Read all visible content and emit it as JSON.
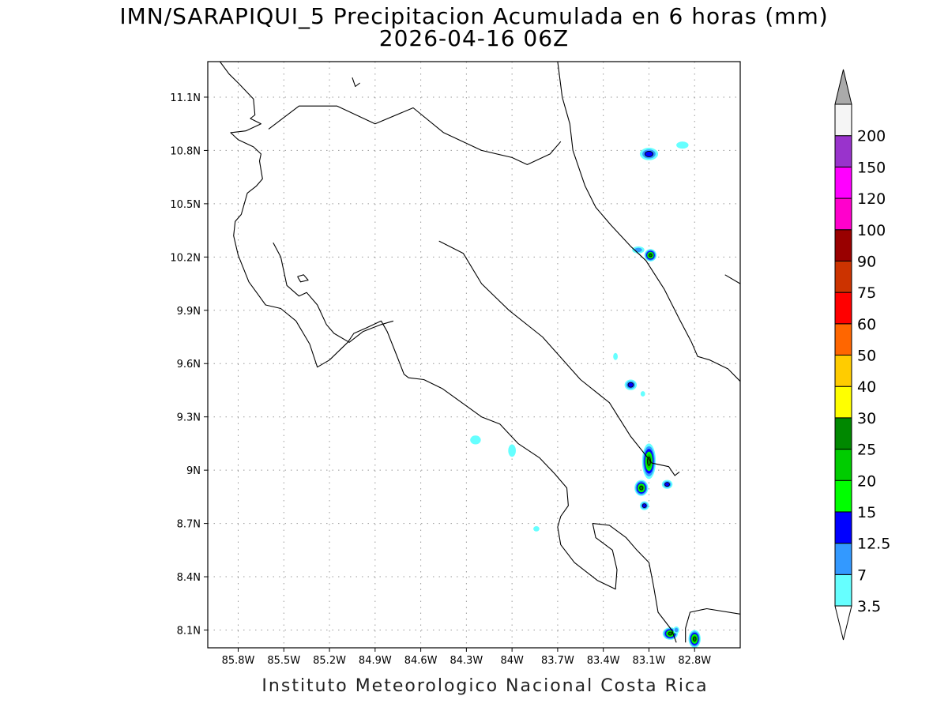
{
  "title": "IMN/SARAPIQUI_5 Precipitacion Acumulada en 6 horas (mm)",
  "subtitle": "2026-04-16 06Z",
  "footer": "Instituto Meteorologico Nacional Costa Rica",
  "map": {
    "lon_range": [
      -86.0,
      -82.5
    ],
    "lat_range": [
      8.0,
      11.3
    ],
    "x_ticks": [
      {
        "lon": -85.8,
        "label": "85.8W"
      },
      {
        "lon": -85.5,
        "label": "85.5W"
      },
      {
        "lon": -85.2,
        "label": "85.2W"
      },
      {
        "lon": -84.9,
        "label": "84.9W"
      },
      {
        "lon": -84.6,
        "label": "84.6W"
      },
      {
        "lon": -84.3,
        "label": "84.3W"
      },
      {
        "lon": -84.0,
        "label": "84W"
      },
      {
        "lon": -83.7,
        "label": "83.7W"
      },
      {
        "lon": -83.4,
        "label": "83.4W"
      },
      {
        "lon": -83.1,
        "label": "83.1W"
      },
      {
        "lon": -82.8,
        "label": "82.8W"
      }
    ],
    "y_ticks": [
      {
        "lat": 11.1,
        "label": "11.1N"
      },
      {
        "lat": 10.8,
        "label": "10.8N"
      },
      {
        "lat": 10.5,
        "label": "10.5N"
      },
      {
        "lat": 10.2,
        "label": "10.2N"
      },
      {
        "lat": 9.9,
        "label": "9.9N"
      },
      {
        "lat": 9.6,
        "label": "9.6N"
      },
      {
        "lat": 9.3,
        "label": "9.3N"
      },
      {
        "lat": 9.0,
        "label": "9N"
      },
      {
        "lat": 8.7,
        "label": "8.7N"
      },
      {
        "lat": 8.4,
        "label": "8.4N"
      },
      {
        "lat": 8.1,
        "label": "8.1N"
      }
    ],
    "grid": true,
    "coast_lines": [
      [
        [
          -85.92,
          11.3
        ],
        [
          -85.86,
          11.23
        ],
        [
          -85.8,
          11.18
        ],
        [
          -85.7,
          11.09
        ],
        [
          -85.69,
          11.0
        ],
        [
          -85.72,
          10.98
        ],
        [
          -85.65,
          10.95
        ],
        [
          -85.75,
          10.91
        ],
        [
          -85.85,
          10.9
        ],
        [
          -85.8,
          10.86
        ],
        [
          -85.7,
          10.82
        ],
        [
          -85.65,
          10.78
        ],
        [
          -85.66,
          10.74
        ],
        [
          -85.64,
          10.64
        ],
        [
          -85.68,
          10.6
        ],
        [
          -85.74,
          10.56
        ],
        [
          -85.78,
          10.44
        ],
        [
          -85.82,
          10.4
        ],
        [
          -85.83,
          10.32
        ],
        [
          -85.8,
          10.21
        ],
        [
          -85.73,
          10.06
        ],
        [
          -85.67,
          9.99
        ],
        [
          -85.62,
          9.93
        ],
        [
          -85.52,
          9.91
        ],
        [
          -85.42,
          9.84
        ],
        [
          -85.33,
          9.71
        ],
        [
          -85.28,
          9.58
        ],
        [
          -85.2,
          9.62
        ],
        [
          -85.08,
          9.72
        ],
        [
          -85.04,
          9.77
        ],
        [
          -84.96,
          9.8
        ],
        [
          -84.86,
          9.84
        ],
        [
          -84.82,
          9.78
        ],
        [
          -84.76,
          9.65
        ],
        [
          -84.71,
          9.54
        ],
        [
          -84.68,
          9.52
        ],
        [
          -84.58,
          9.51
        ],
        [
          -84.46,
          9.46
        ],
        [
          -84.33,
          9.38
        ],
        [
          -84.2,
          9.3
        ],
        [
          -84.08,
          9.26
        ],
        [
          -83.96,
          9.15
        ],
        [
          -83.82,
          9.07
        ],
        [
          -83.72,
          8.98
        ],
        [
          -83.64,
          8.9
        ],
        [
          -83.63,
          8.8
        ],
        [
          -83.68,
          8.74
        ],
        [
          -83.7,
          8.68
        ],
        [
          -83.68,
          8.58
        ],
        [
          -83.59,
          8.48
        ],
        [
          -83.5,
          8.42
        ],
        [
          -83.44,
          8.38
        ],
        [
          -83.32,
          8.33
        ],
        [
          -83.31,
          8.44
        ],
        [
          -83.34,
          8.55
        ],
        [
          -83.45,
          8.62
        ],
        [
          -83.47,
          8.7
        ],
        [
          -83.36,
          8.69
        ],
        [
          -83.25,
          8.62
        ],
        [
          -83.18,
          8.55
        ],
        [
          -83.1,
          8.48
        ],
        [
          -83.07,
          8.35
        ],
        [
          -83.04,
          8.2
        ],
        [
          -82.95,
          8.1
        ],
        [
          -82.92,
          8.03
        ]
      ],
      [
        [
          -82.86,
          8.03
        ],
        [
          -82.86,
          8.11
        ],
        [
          -82.83,
          8.2
        ],
        [
          -82.72,
          8.22
        ],
        [
          -82.5,
          8.19
        ]
      ],
      [
        [
          -84.48,
          10.29
        ],
        [
          -84.32,
          10.22
        ],
        [
          -84.2,
          10.05
        ],
        [
          -84.02,
          9.9
        ],
        [
          -83.8,
          9.75
        ],
        [
          -83.55,
          9.51
        ],
        [
          -83.36,
          9.38
        ],
        [
          -83.22,
          9.19
        ],
        [
          -83.08,
          9.04
        ],
        [
          -82.97,
          9.02
        ],
        [
          -82.93,
          8.97
        ],
        [
          -82.9,
          8.99
        ]
      ],
      [
        [
          -85.57,
          10.28
        ],
        [
          -85.52,
          10.2
        ],
        [
          -85.48,
          10.04
        ],
        [
          -85.4,
          9.98
        ],
        [
          -85.35,
          10.0
        ],
        [
          -85.28,
          9.93
        ],
        [
          -85.22,
          9.82
        ],
        [
          -85.17,
          9.77
        ],
        [
          -85.07,
          9.72
        ],
        [
          -84.98,
          9.78
        ],
        [
          -84.86,
          9.82
        ],
        [
          -84.78,
          9.84
        ]
      ],
      [
        [
          -85.41,
          10.09
        ],
        [
          -85.37,
          10.1
        ],
        [
          -85.34,
          10.07
        ],
        [
          -85.39,
          10.06
        ],
        [
          -85.41,
          10.09
        ]
      ],
      [
        [
          -85.05,
          11.21
        ],
        [
          -85.03,
          11.16
        ],
        [
          -85.0,
          11.18
        ]
      ],
      [
        [
          -85.6,
          10.92
        ],
        [
          -85.4,
          11.05
        ],
        [
          -85.15,
          11.05
        ],
        [
          -84.9,
          10.95
        ],
        [
          -84.65,
          11.04
        ],
        [
          -84.45,
          10.9
        ],
        [
          -84.2,
          10.8
        ],
        [
          -84.0,
          10.76
        ],
        [
          -83.9,
          10.72
        ],
        [
          -83.75,
          10.78
        ],
        [
          -83.68,
          10.85
        ]
      ],
      [
        [
          -83.7,
          11.3
        ],
        [
          -83.67,
          11.1
        ],
        [
          -83.62,
          10.95
        ],
        [
          -83.6,
          10.8
        ],
        [
          -83.52,
          10.6
        ],
        [
          -83.45,
          10.48
        ],
        [
          -83.35,
          10.38
        ],
        [
          -83.22,
          10.26
        ],
        [
          -83.12,
          10.18
        ],
        [
          -83.0,
          10.02
        ],
        [
          -82.9,
          9.85
        ],
        [
          -82.82,
          9.72
        ],
        [
          -82.78,
          9.64
        ],
        [
          -82.7,
          9.62
        ],
        [
          -82.58,
          9.57
        ],
        [
          -82.5,
          9.5
        ]
      ],
      [
        [
          -82.5,
          10.05
        ],
        [
          -82.6,
          10.1
        ]
      ]
    ],
    "rain_cells": [
      {
        "lon": -83.1,
        "lat": 10.78,
        "rx": 0.06,
        "ry": 0.035,
        "level": 12.5
      },
      {
        "lon": -82.88,
        "lat": 10.83,
        "rx": 0.04,
        "ry": 0.02,
        "level": 3.5
      },
      {
        "lon": -83.09,
        "lat": 10.21,
        "rx": 0.04,
        "ry": 0.035,
        "level": 25
      },
      {
        "lon": -83.17,
        "lat": 10.24,
        "rx": 0.04,
        "ry": 0.02,
        "level": 7
      },
      {
        "lon": -83.32,
        "lat": 9.64,
        "rx": 0.015,
        "ry": 0.02,
        "level": 3.5
      },
      {
        "lon": -83.22,
        "lat": 9.48,
        "rx": 0.04,
        "ry": 0.03,
        "level": 12.5
      },
      {
        "lon": -83.14,
        "lat": 9.43,
        "rx": 0.015,
        "ry": 0.015,
        "level": 3.5
      },
      {
        "lon": -84.24,
        "lat": 9.17,
        "rx": 0.035,
        "ry": 0.025,
        "level": 3.5
      },
      {
        "lon": -84.0,
        "lat": 9.11,
        "rx": 0.025,
        "ry": 0.035,
        "level": 3.5
      },
      {
        "lon": -83.1,
        "lat": 9.05,
        "rx": 0.045,
        "ry": 0.1,
        "level": 25
      },
      {
        "lon": -83.15,
        "lat": 8.9,
        "rx": 0.045,
        "ry": 0.045,
        "level": 25
      },
      {
        "lon": -83.13,
        "lat": 8.8,
        "rx": 0.03,
        "ry": 0.025,
        "level": 12.5
      },
      {
        "lon": -82.98,
        "lat": 8.92,
        "rx": 0.035,
        "ry": 0.025,
        "level": 12.5
      },
      {
        "lon": -83.84,
        "lat": 8.67,
        "rx": 0.02,
        "ry": 0.015,
        "level": 3.5
      },
      {
        "lon": -82.96,
        "lat": 8.08,
        "rx": 0.05,
        "ry": 0.035,
        "level": 25
      },
      {
        "lon": -82.8,
        "lat": 8.05,
        "rx": 0.04,
        "ry": 0.05,
        "level": 25
      },
      {
        "lon": -82.92,
        "lat": 8.1,
        "rx": 0.02,
        "ry": 0.02,
        "level": 7
      }
    ]
  },
  "colorbar": {
    "levels": [
      {
        "label": "3.5",
        "color": "#66ffff"
      },
      {
        "label": "7",
        "color": "#3399ff"
      },
      {
        "label": "12.5",
        "color": "#0000ff"
      },
      {
        "label": "15",
        "color": "#00ff00"
      },
      {
        "label": "20",
        "color": "#00cc00"
      },
      {
        "label": "25",
        "color": "#008800"
      },
      {
        "label": "30",
        "color": "#ffff00"
      },
      {
        "label": "40",
        "color": "#ffcc00"
      },
      {
        "label": "50",
        "color": "#ff6600"
      },
      {
        "label": "60",
        "color": "#ff0000"
      },
      {
        "label": "75",
        "color": "#cc3300"
      },
      {
        "label": "90",
        "color": "#990000"
      },
      {
        "label": "100",
        "color": "#ff00cc"
      },
      {
        "label": "120",
        "color": "#ff00ff"
      },
      {
        "label": "150",
        "color": "#9933cc"
      },
      {
        "label": "200",
        "color": "#f5f5f5"
      }
    ],
    "over_color": "#aaaaaa",
    "under_color": "#ffffff"
  }
}
